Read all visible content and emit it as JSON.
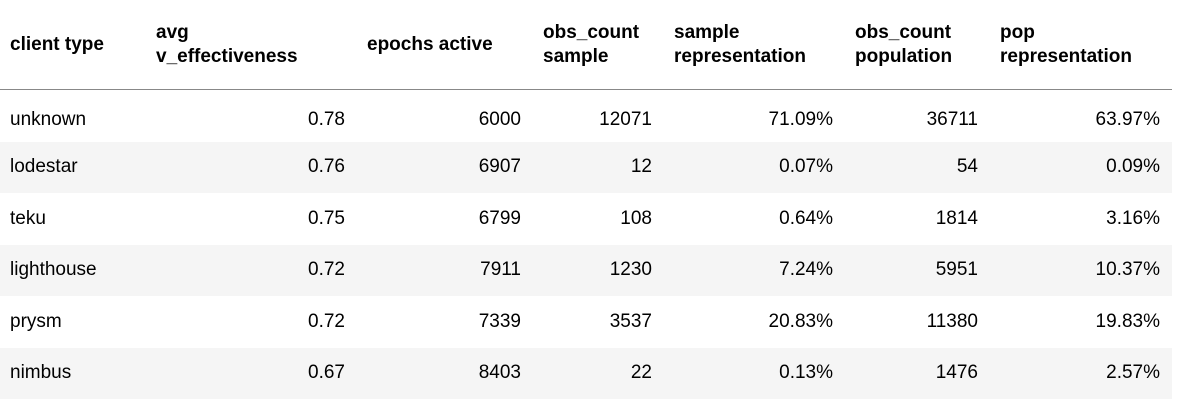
{
  "table": {
    "headers": [
      [
        "client type"
      ],
      [
        "avg",
        "v_effectiveness"
      ],
      [
        "epochs active"
      ],
      [
        "obs_count",
        "sample"
      ],
      [
        "sample",
        "representation"
      ],
      [
        "obs_count",
        "population"
      ],
      [
        "pop",
        "representation"
      ]
    ],
    "rows": [
      [
        "unknown",
        "0.78",
        "6000",
        "12071",
        "71.09%",
        "36711",
        "63.97%"
      ],
      [
        "lodestar",
        "0.76",
        "6907",
        "12",
        "0.07%",
        "54",
        "0.09%"
      ],
      [
        "teku",
        "0.75",
        "6799",
        "108",
        "0.64%",
        "1814",
        "3.16%"
      ],
      [
        "lighthouse",
        "0.72",
        "7911",
        "1230",
        "7.24%",
        "5951",
        "10.37%"
      ],
      [
        "prysm",
        "0.72",
        "7339",
        "3537",
        "20.83%",
        "11380",
        "19.83%"
      ],
      [
        "nimbus",
        "0.67",
        "8403",
        "22",
        "0.13%",
        "1476",
        "2.57%"
      ]
    ]
  }
}
